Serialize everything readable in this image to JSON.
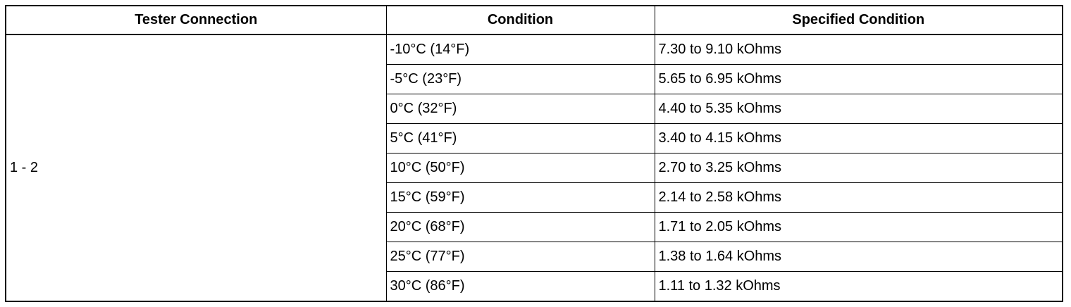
{
  "header": [
    "Tester Connection",
    "Condition",
    "Specified Condition"
  ],
  "table": {
    "connection": "1 - 2",
    "rows": [
      [
        "-10°C (14°F)",
        "7.30 to 9.10 kOhms"
      ],
      [
        "-5°C (23°F)",
        "5.65 to 6.95 kOhms"
      ],
      [
        "0°C (32°F)",
        "4.40 to 5.35 kOhms"
      ],
      [
        "5°C (41°F)",
        "3.40 to 4.15 kOhms"
      ],
      [
        "10°C (50°F)",
        "2.70 to 3.25 kOhms"
      ],
      [
        "15°C (59°F)",
        "2.14 to 2.58 kOhms"
      ],
      [
        "20°C (68°F)",
        "1.71 to 2.05 kOhms"
      ],
      [
        "25°C (77°F)",
        "1.38 to 1.64 kOhms"
      ],
      [
        "30°C (86°F)",
        "1.11 to 1.32 kOhms"
      ]
    ]
  }
}
